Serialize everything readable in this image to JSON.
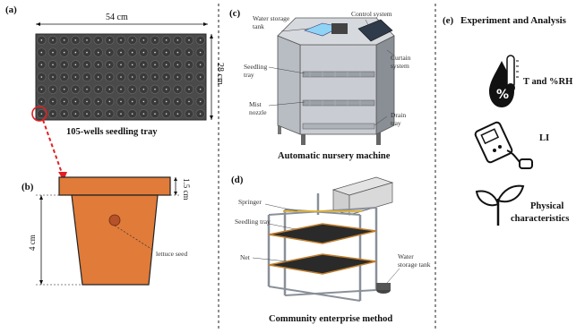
{
  "panel_a": {
    "label": "(a)",
    "width_dim": "54 cm",
    "height_dim": "28 cm",
    "caption": "105-wells seedling tray",
    "grid": {
      "cols": 15,
      "rows": 7
    },
    "tray_color": "#4a4a4a",
    "highlight_color": "#e02020"
  },
  "panel_b": {
    "label": "(b)",
    "top_dim": "1.5 cm",
    "height_dim": "4 cm",
    "seed_label": "lettuce seed",
    "pot_color": "#e07b39",
    "seed_color": "#b5522a"
  },
  "panel_c": {
    "label": "(c)",
    "labels": {
      "water_tank": "Water storage tank",
      "control": "Control system",
      "curtain": "Curtain system",
      "seedling_tray": "Seedling tray",
      "mist": "Mist nozzle",
      "drain": "Drain tray"
    },
    "caption": "Automatic nursery machine"
  },
  "panel_d": {
    "label": "(d)",
    "labels": {
      "springer": "Springer",
      "seedling_tray": "Seedling tray",
      "net": "Net",
      "water_tank": "Water storage tank"
    },
    "caption": "Community enterprise  method"
  },
  "panel_e": {
    "label": "(e)",
    "title": "Experiment and Analysis",
    "items": [
      "T and %RH",
      "LI",
      "Physical",
      "characteristics"
    ]
  }
}
